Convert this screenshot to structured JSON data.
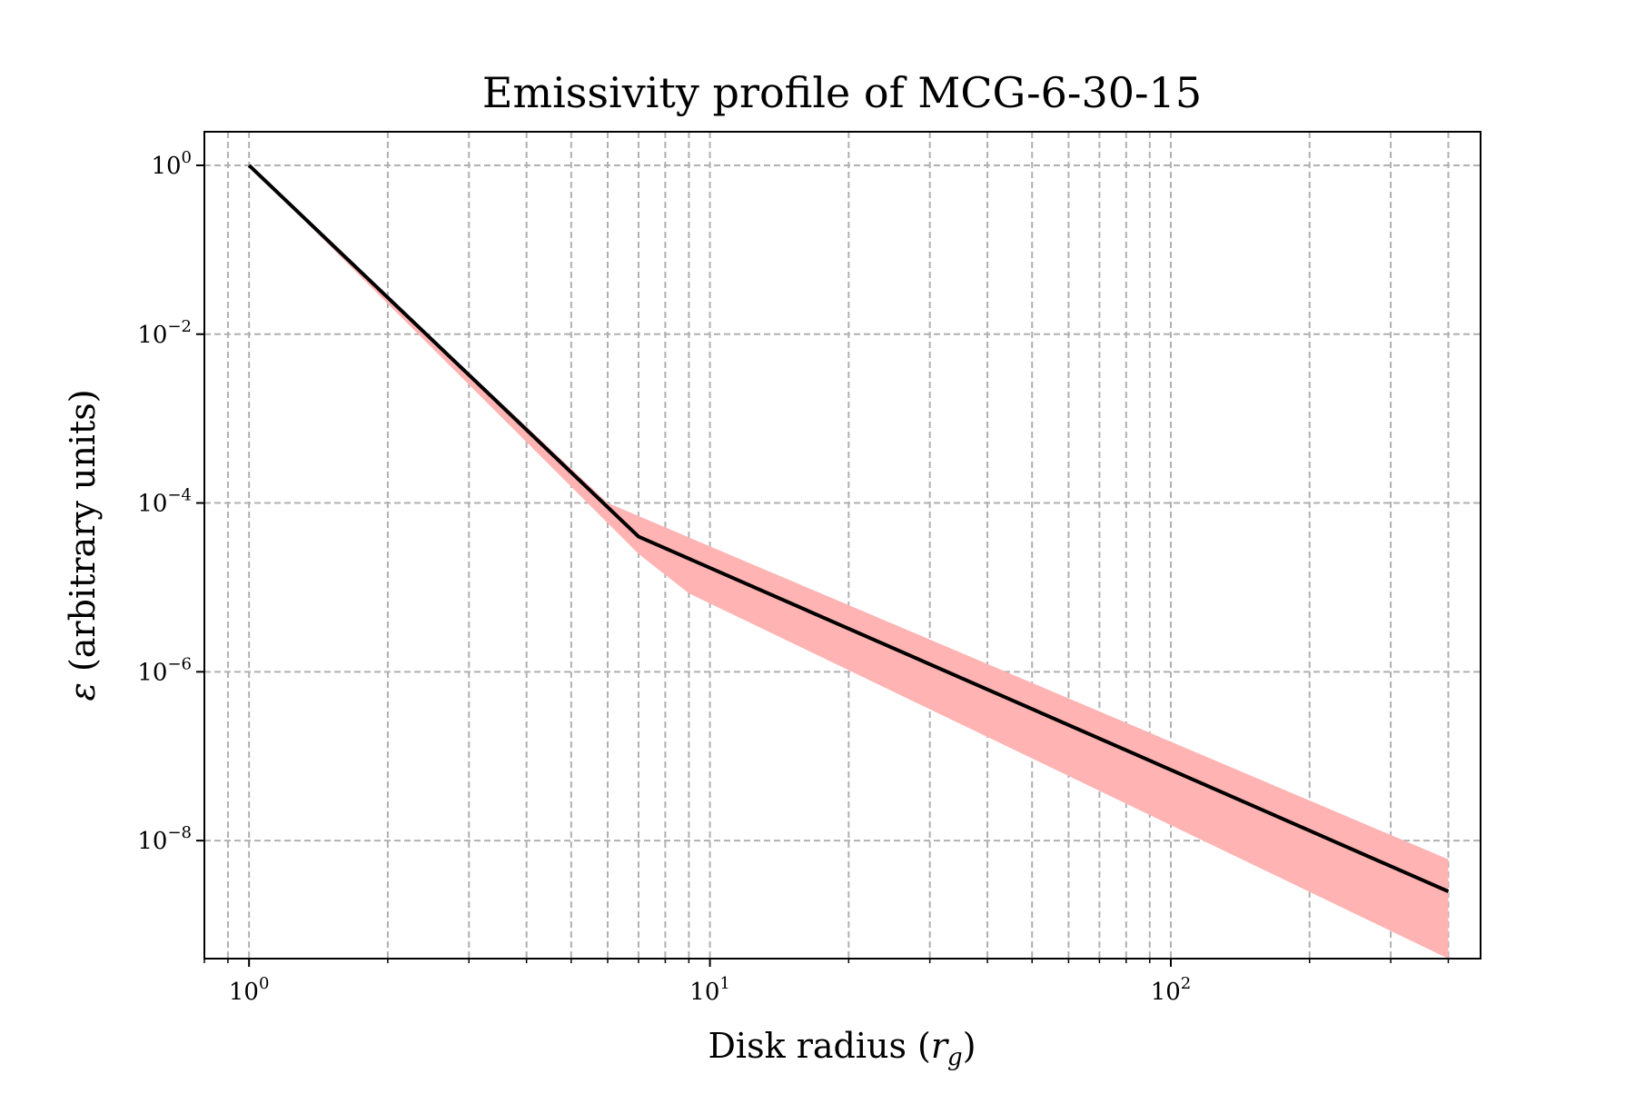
{
  "chart_data": {
    "type": "line",
    "title": "Emissivity profile of MCG-6-30-15",
    "xlabel": {
      "prefix": "Disk radius (",
      "math": "r",
      "subscript": "g",
      "suffix": ")"
    },
    "ylabel": {
      "math": "ε",
      "text": " (arbitrary units)"
    },
    "x_scale": "log",
    "y_scale": "log",
    "xlim": [
      0.8,
      470
    ],
    "ylim": [
      4e-10,
      2.5
    ],
    "grid": true,
    "x_ticks": [
      {
        "value": 1,
        "base": "10",
        "exp": "0"
      },
      {
        "value": 10,
        "base": "10",
        "exp": "1"
      },
      {
        "value": 100,
        "base": "10",
        "exp": "2"
      }
    ],
    "y_ticks": [
      {
        "value": 1,
        "base": "10",
        "exp": "0"
      },
      {
        "value": 0.01,
        "base": "10",
        "exp": "−2"
      },
      {
        "value": 0.0001,
        "base": "10",
        "exp": "−4"
      },
      {
        "value": 1e-06,
        "base": "10",
        "exp": "−6"
      },
      {
        "value": 1e-08,
        "base": "10",
        "exp": "−8"
      }
    ],
    "series": [
      {
        "type": "line",
        "color": "#000000",
        "points": [
          [
            1,
            1
          ],
          [
            7,
            4e-05
          ],
          [
            400,
            2.5e-09
          ]
        ]
      },
      {
        "type": "band",
        "color": "#ffb3b3",
        "upper": [
          [
            1,
            1
          ],
          [
            6,
            0.0001
          ],
          [
            400,
            6e-09
          ]
        ],
        "lower": [
          [
            1,
            1
          ],
          [
            7,
            2.5e-05
          ],
          [
            9,
            8.5e-06
          ],
          [
            400,
            4e-10
          ]
        ]
      }
    ]
  }
}
